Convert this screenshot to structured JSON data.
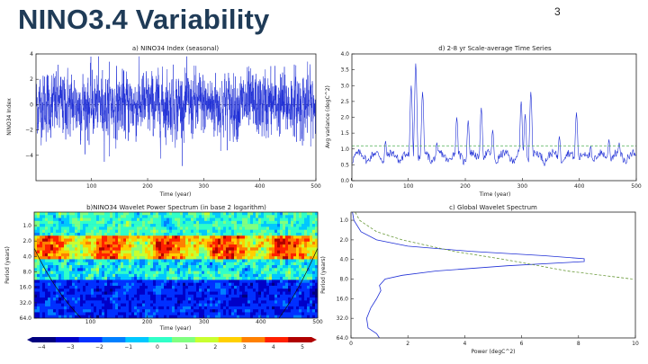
{
  "slide": {
    "title": "NINO3.4 Variability",
    "page_number": "3"
  },
  "chart_data": [
    {
      "type": "line",
      "title": "a) NINO34 Index (seasonal)",
      "xlabel": "Time (year)",
      "ylabel": "NINO34 Index",
      "xlim": [
        1,
        500
      ],
      "ylim": [
        -6,
        4
      ],
      "xticks": [
        100,
        200,
        300,
        400,
        500
      ],
      "yticks": [
        -4,
        -2,
        0,
        2,
        4
      ],
      "series": [
        {
          "color": "#1f2fd6",
          "samples": 2000,
          "std": 1.2,
          "generated": true
        }
      ]
    },
    {
      "type": "line",
      "title": "d) 2-8 yr Scale-average Time Series",
      "xlabel": "Time (year)",
      "ylabel": "Avg variance (degC^2)",
      "xlim": [
        1,
        500
      ],
      "ylim": [
        0.0,
        4.0
      ],
      "xticks": [
        0,
        100,
        200,
        300,
        400,
        500
      ],
      "yticks": [
        0.0,
        0.5,
        1.0,
        1.5,
        2.0,
        2.5,
        3.0,
        3.5,
        4.0
      ],
      "significance_level": 1.1,
      "peaks": [
        {
          "x": 60,
          "y": 1.25
        },
        {
          "x": 105,
          "y": 3.0
        },
        {
          "x": 113,
          "y": 3.7
        },
        {
          "x": 125,
          "y": 2.8
        },
        {
          "x": 150,
          "y": 1.2
        },
        {
          "x": 185,
          "y": 2.0
        },
        {
          "x": 205,
          "y": 1.9
        },
        {
          "x": 228,
          "y": 2.3
        },
        {
          "x": 248,
          "y": 1.6
        },
        {
          "x": 298,
          "y": 2.5
        },
        {
          "x": 305,
          "y": 2.1
        },
        {
          "x": 315,
          "y": 2.8
        },
        {
          "x": 365,
          "y": 1.4
        },
        {
          "x": 395,
          "y": 2.15
        },
        {
          "x": 420,
          "y": 1.1
        },
        {
          "x": 452,
          "y": 1.3
        },
        {
          "x": 470,
          "y": 1.2
        },
        {
          "x": 490,
          "y": 0.9
        }
      ],
      "series": [
        {
          "color": "#1f2fd6"
        },
        {
          "color": "#4caf50",
          "dashed": true
        }
      ]
    },
    {
      "type": "heatmap",
      "title": "b)NINO34 Wavelet Power Spectrum (in base 2 logarithm)",
      "xlabel": "Time (year)",
      "ylabel": "Period (years)",
      "xlim": [
        1,
        500
      ],
      "yticks": [
        "1.0",
        "2.0",
        "4.0",
        "8.0",
        "16.0",
        "32.0",
        "64.0"
      ],
      "xticks": [
        100,
        200,
        300,
        400,
        500
      ],
      "colorbar": {
        "ticks": [
          "-4",
          "-3",
          "-2",
          "-1",
          "0",
          "1",
          "2",
          "3",
          "4",
          "5"
        ],
        "colors": [
          "#00007f",
          "#0000c8",
          "#0030ff",
          "#0080ff",
          "#00c8ff",
          "#30ffc8",
          "#80ff80",
          "#c8ff30",
          "#ffd000",
          "#ff8000",
          "#ff2000",
          "#b00000"
        ]
      }
    },
    {
      "type": "line",
      "title": "c) Global Wavelet Spectrum",
      "xlabel": "Power (degC^2)",
      "ylabel": "Period (years)",
      "xlim": [
        0,
        10
      ],
      "xticks": [
        0,
        2,
        4,
        6,
        8,
        10
      ],
      "yticks": [
        "1.0",
        "2.0",
        "4.0",
        "8.0",
        "16.0",
        "32.0",
        "64.0"
      ],
      "series": [
        {
          "color": "#1f2fd6",
          "points": [
            {
              "period": 0.75,
              "power": 0.05
            },
            {
              "period": 1.0,
              "power": 0.1
            },
            {
              "period": 1.5,
              "power": 0.35
            },
            {
              "period": 2.0,
              "power": 0.9
            },
            {
              "period": 2.5,
              "power": 2.0
            },
            {
              "period": 3.0,
              "power": 4.2
            },
            {
              "period": 3.5,
              "power": 6.8
            },
            {
              "period": 3.9,
              "power": 8.2
            },
            {
              "period": 4.3,
              "power": 8.2
            },
            {
              "period": 5.0,
              "power": 5.5
            },
            {
              "period": 6.0,
              "power": 3.0
            },
            {
              "period": 7.0,
              "power": 1.8
            },
            {
              "period": 8.0,
              "power": 1.2
            },
            {
              "period": 10.0,
              "power": 1.0
            },
            {
              "period": 12.0,
              "power": 1.05
            },
            {
              "period": 16.0,
              "power": 0.9
            },
            {
              "period": 22.0,
              "power": 0.7
            },
            {
              "period": 32.0,
              "power": 0.55
            },
            {
              "period": 45.0,
              "power": 0.6
            },
            {
              "period": 55.0,
              "power": 0.9
            },
            {
              "period": 64.0,
              "power": 1.0
            }
          ]
        },
        {
          "color": "#6a9a3a",
          "dashed": true,
          "points": [
            {
              "period": 0.75,
              "power": 0.15
            },
            {
              "period": 1.0,
              "power": 0.3
            },
            {
              "period": 1.5,
              "power": 0.9
            },
            {
              "period": 2.0,
              "power": 1.8
            },
            {
              "period": 3.0,
              "power": 3.6
            },
            {
              "period": 4.0,
              "power": 5.4
            },
            {
              "period": 6.0,
              "power": 7.6
            },
            {
              "period": 8.0,
              "power": 9.9
            }
          ]
        }
      ]
    }
  ]
}
